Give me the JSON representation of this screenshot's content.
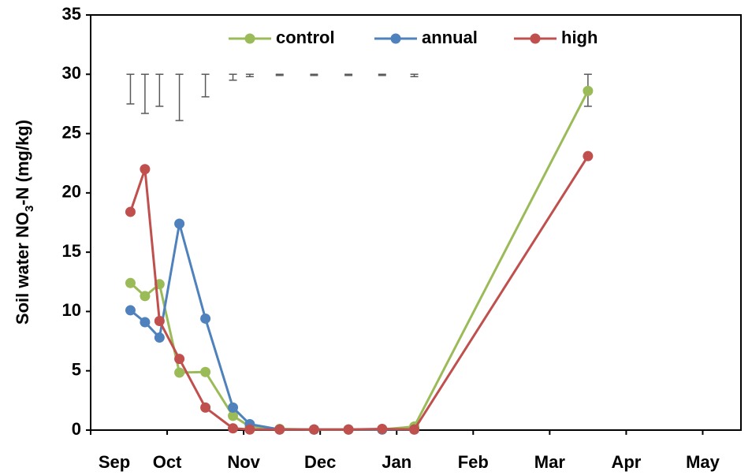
{
  "chart_data": {
    "type": "line",
    "y_label": {
      "text": "Soil water NO",
      "sub": "3",
      "tail": "-N (mg/kg)"
    },
    "x": [
      0.52,
      0.71,
      0.9,
      1.16,
      1.5,
      1.86,
      2.08,
      2.47,
      2.92,
      3.37,
      3.81,
      4.23,
      6.5
    ],
    "xlim": [
      0,
      8.5
    ],
    "xticks": [
      {
        "value": 0,
        "label": "Sep"
      },
      {
        "value": 1,
        "label": "Oct"
      },
      {
        "value": 2,
        "label": "Nov"
      },
      {
        "value": 3,
        "label": "Dec"
      },
      {
        "value": 4,
        "label": "Jan"
      },
      {
        "value": 5,
        "label": "Feb"
      },
      {
        "value": 6,
        "label": "Mar"
      },
      {
        "value": 7,
        "label": "Apr"
      },
      {
        "value": 8,
        "label": "May"
      }
    ],
    "ylim": [
      0,
      35
    ],
    "yticks": [
      0,
      5,
      10,
      15,
      20,
      25,
      30,
      35
    ],
    "legend": "top",
    "series": [
      {
        "name": "control",
        "color": "#9bbb59",
        "values": [
          12.4,
          11.3,
          12.3,
          4.85,
          4.9,
          1.2,
          0.3,
          0.1,
          0.05,
          0.05,
          0.05,
          0.3,
          28.6
        ]
      },
      {
        "name": "annual",
        "color": "#4f81bd",
        "values": [
          10.1,
          9.1,
          7.8,
          17.4,
          9.4,
          1.9,
          0.5,
          0.05,
          0.05,
          0.05,
          0.05,
          0.05,
          null
        ]
      },
      {
        "name": "high",
        "color": "#c0504d",
        "values": [
          18.4,
          22.0,
          9.2,
          6.0,
          1.9,
          0.15,
          0.05,
          0.05,
          0.05,
          0.05,
          0.1,
          0.05,
          23.1
        ]
      }
    ],
    "error_bars": {
      "color": "#595959",
      "values": [
        30,
        30,
        30,
        30,
        30,
        30,
        30,
        30,
        30,
        30,
        30,
        30,
        30
      ],
      "errors": [
        2.5,
        3.3,
        2.7,
        3.9,
        1.9,
        0.5,
        0.2,
        0.1,
        0.1,
        0.1,
        0.1,
        0.2,
        2.7
      ]
    }
  }
}
